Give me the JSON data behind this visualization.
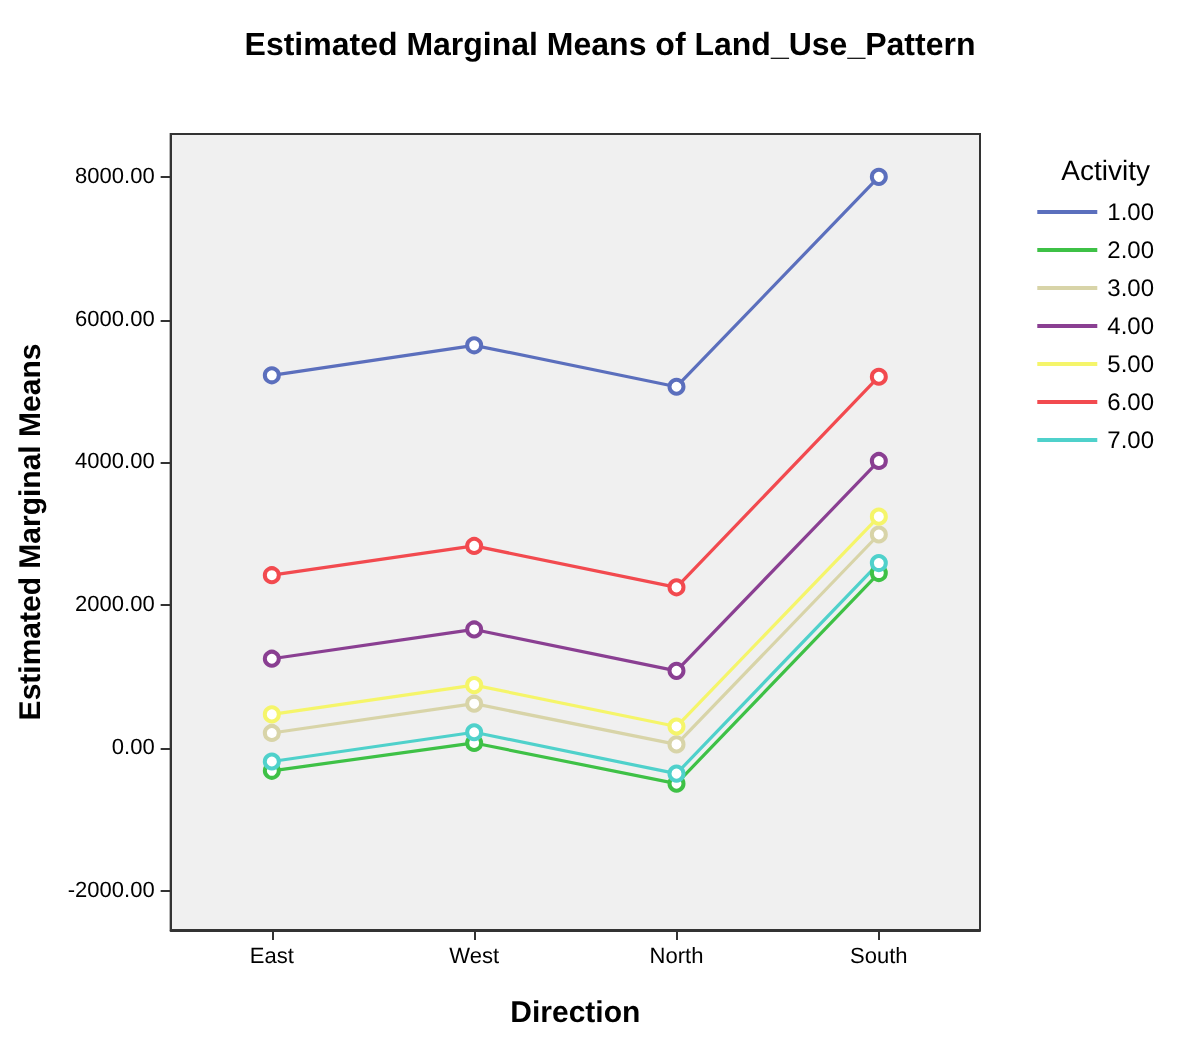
{
  "chart_data": {
    "type": "line",
    "title": "Estimated Marginal Means of Land_Use_Pattern",
    "xlabel": "Direction",
    "ylabel": "Estimated Marginal Means",
    "legend_title": "Activity",
    "legend": "right",
    "marker": "circle",
    "grid": false,
    "categories": [
      "East",
      "West",
      "North",
      "South"
    ],
    "ylim": [
      -2550,
      8600
    ],
    "yticks": [
      {
        "value": -2000,
        "label": "-2000.00"
      },
      {
        "value": 0,
        "label": "0.00"
      },
      {
        "value": 2000,
        "label": "2000.00"
      },
      {
        "value": 4000,
        "label": "4000.00"
      },
      {
        "value": 6000,
        "label": "6000.00"
      },
      {
        "value": 8000,
        "label": "8000.00"
      }
    ],
    "series": [
      {
        "name": "1.00",
        "color": "#5b6fbd",
        "values": [
          5220,
          5640,
          5060,
          8000
        ]
      },
      {
        "name": "2.00",
        "color": "#3ec146",
        "values": [
          -320,
          70,
          -500,
          2450
        ]
      },
      {
        "name": "3.00",
        "color": "#d8d4a8",
        "values": [
          210,
          620,
          50,
          2990
        ]
      },
      {
        "name": "4.00",
        "color": "#8a3f92",
        "values": [
          1250,
          1660,
          1080,
          4020
        ]
      },
      {
        "name": "5.00",
        "color": "#f5f56a",
        "values": [
          470,
          880,
          300,
          3240
        ]
      },
      {
        "name": "6.00",
        "color": "#f24a4f",
        "values": [
          2420,
          2830,
          2250,
          5200
        ]
      },
      {
        "name": "7.00",
        "color": "#4fd1cb",
        "values": [
          -190,
          220,
          -360,
          2590
        ]
      }
    ]
  }
}
